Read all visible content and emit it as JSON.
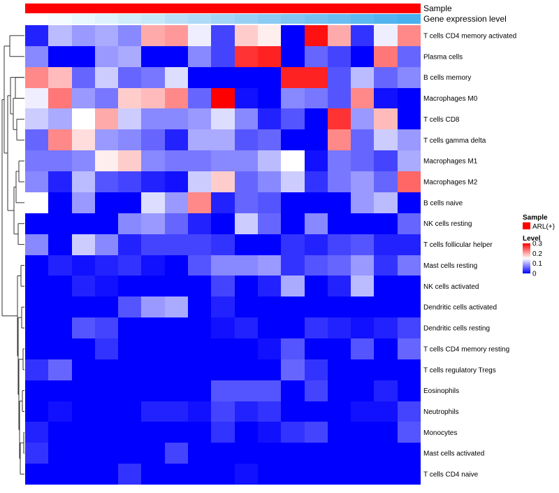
{
  "chart_data": {
    "type": "heatmap",
    "title": "",
    "row_names": [
      "T cells CD4 memory activated",
      "Plasma cells",
      "B cells memory",
      "Macrophages M0",
      "T cells CD8",
      "T cells gamma delta",
      "Macrophages M1",
      "Macrophages M2",
      "B cells naive",
      "NK cells resting",
      "T cells follicular helper",
      "Mast cells resting",
      "NK cells activated",
      "Dendritic cells activated",
      "Dendritic cells resting",
      "T cells CD4 memory resting",
      "T cells regulatory  Tregs",
      "Eosinophils",
      "Neutrophils",
      "Monocytes",
      "Mast cells activated",
      "T cells CD4 naive"
    ],
    "values": [
      [
        0.02,
        0.11,
        0.09,
        0.1,
        0.08,
        0.2,
        0.21,
        0.14,
        0.04,
        0.18,
        0.16,
        0.0,
        0.29,
        0.2,
        0.03,
        0.14,
        0.22
      ],
      [
        0.08,
        0.0,
        0.0,
        0.09,
        0.1,
        0.0,
        0.0,
        0.08,
        0.04,
        0.27,
        0.28,
        0.0,
        0.06,
        0.04,
        0.0,
        0.23,
        0.06
      ],
      [
        0.22,
        0.19,
        0.06,
        0.12,
        0.06,
        0.07,
        0.13,
        0.0,
        0.0,
        0.0,
        0.0,
        0.28,
        0.28,
        0.05,
        0.11,
        0.06,
        0.08
      ],
      [
        0.14,
        0.23,
        0.09,
        0.07,
        0.18,
        0.19,
        0.22,
        0.06,
        0.3,
        0.01,
        0.0,
        0.08,
        0.07,
        0.05,
        0.22,
        0.01,
        0.0
      ],
      [
        0.12,
        0.1,
        0.15,
        0.2,
        0.12,
        0.08,
        0.08,
        0.09,
        0.13,
        0.08,
        0.02,
        0.05,
        0.0,
        0.27,
        0.09,
        0.19,
        0.0
      ],
      [
        0.06,
        0.22,
        0.17,
        0.09,
        0.08,
        0.06,
        0.02,
        0.1,
        0.1,
        0.05,
        0.06,
        0.0,
        0.0,
        0.22,
        0.06,
        0.12,
        0.09
      ],
      [
        0.07,
        0.07,
        0.08,
        0.16,
        0.18,
        0.08,
        0.07,
        0.07,
        0.08,
        0.08,
        0.11,
        0.15,
        0.01,
        0.07,
        0.06,
        0.04,
        0.1
      ],
      [
        0.08,
        0.02,
        0.11,
        0.05,
        0.04,
        0.02,
        0.01,
        0.12,
        0.18,
        0.06,
        0.08,
        0.12,
        0.03,
        0.07,
        0.09,
        0.06,
        0.24
      ],
      [
        0.15,
        0.0,
        0.09,
        0.0,
        0.0,
        0.13,
        0.09,
        0.22,
        0.02,
        0.06,
        0.05,
        0.0,
        0.0,
        0.0,
        0.09,
        0.11,
        0.0
      ],
      [
        0.0,
        0.0,
        0.0,
        0.0,
        0.08,
        0.09,
        0.06,
        0.02,
        0.0,
        0.12,
        0.06,
        0.0,
        0.08,
        0.0,
        0.0,
        0.0,
        0.06
      ],
      [
        0.08,
        0.0,
        0.12,
        0.08,
        0.02,
        0.04,
        0.04,
        0.04,
        0.03,
        0.0,
        0.0,
        0.03,
        0.02,
        0.04,
        0.05,
        0.02,
        0.02
      ],
      [
        0.0,
        0.02,
        0.01,
        0.02,
        0.03,
        0.01,
        0.0,
        0.05,
        0.08,
        0.08,
        0.09,
        0.03,
        0.05,
        0.06,
        0.09,
        0.03,
        0.07
      ],
      [
        0.0,
        0.0,
        0.02,
        0.01,
        0.0,
        0.0,
        0.0,
        0.0,
        0.04,
        0.0,
        0.02,
        0.1,
        0.0,
        0.02,
        0.11,
        0.0,
        0.0
      ],
      [
        0.0,
        0.0,
        0.0,
        0.0,
        0.05,
        0.09,
        0.1,
        0.0,
        0.02,
        0.0,
        0.0,
        0.0,
        0.0,
        0.0,
        0.0,
        0.0,
        0.0
      ],
      [
        0.0,
        0.0,
        0.05,
        0.04,
        0.0,
        0.0,
        0.0,
        0.0,
        0.01,
        0.02,
        0.0,
        0.0,
        0.03,
        0.02,
        0.01,
        0.02,
        0.04
      ],
      [
        0.0,
        0.0,
        0.0,
        0.03,
        0.0,
        0.0,
        0.0,
        0.0,
        0.0,
        0.0,
        0.01,
        0.05,
        0.0,
        0.0,
        0.05,
        0.0,
        0.06
      ],
      [
        0.03,
        0.06,
        0.0,
        0.0,
        0.0,
        0.0,
        0.0,
        0.0,
        0.0,
        0.0,
        0.0,
        0.06,
        0.03,
        0.0,
        0.0,
        0.0,
        0.0
      ],
      [
        0.0,
        0.0,
        0.0,
        0.0,
        0.0,
        0.0,
        0.0,
        0.0,
        0.05,
        0.05,
        0.05,
        0.0,
        0.04,
        0.0,
        0.0,
        0.02,
        0.0
      ],
      [
        0.0,
        0.01,
        0.0,
        0.0,
        0.0,
        0.02,
        0.02,
        0.01,
        0.04,
        0.02,
        0.03,
        0.0,
        0.0,
        0.0,
        0.01,
        0.01,
        0.04
      ],
      [
        0.02,
        0.0,
        0.0,
        0.0,
        0.0,
        0.0,
        0.0,
        0.0,
        0.03,
        0.0,
        0.01,
        0.03,
        0.04,
        0.0,
        0.0,
        0.0,
        0.05
      ],
      [
        0.03,
        0.0,
        0.0,
        0.0,
        0.0,
        0.0,
        0.04,
        0.0,
        0.0,
        0.0,
        0.0,
        0.0,
        0.0,
        0.0,
        0.0,
        0.0,
        0.0
      ],
      [
        0.0,
        0.0,
        0.0,
        0.0,
        0.03,
        0.0,
        0.0,
        0.0,
        0.0,
        0.01,
        0.0,
        0.0,
        0.0,
        0.0,
        0.0,
        0.0,
        0.0
      ]
    ],
    "color_scale": {
      "min": 0,
      "mid": 0.15,
      "max": 0.3,
      "colors": [
        "#0000ff",
        "#ffffff",
        "#ff0000"
      ]
    },
    "annotation_tracks": [
      {
        "label": "Sample",
        "colors": [
          "#ff0000",
          "#ff0000",
          "#ff0000",
          "#ff0000",
          "#ff0000",
          "#ff0000",
          "#ff0000",
          "#ff0000",
          "#ff0000",
          "#ff0000",
          "#ff0000",
          "#ff0000",
          "#ff0000",
          "#ff0000",
          "#ff0000",
          "#ff0000",
          "#ff0000"
        ]
      },
      {
        "label": "Gene expression level",
        "colors": [
          "#ffffff",
          "#f4fbfe",
          "#e8f6fd",
          "#ddf2fc",
          "#d1edfb",
          "#c6e9fa",
          "#badff9",
          "#afdaf8",
          "#a3d5f6",
          "#98d0f5",
          "#8ccbf4",
          "#81c6f3",
          "#75c2f2",
          "#6abdf1",
          "#5eb8f0",
          "#53b3ee",
          "#48b0ee"
        ]
      }
    ],
    "legend": [
      {
        "title": "Sample",
        "type": "categorical",
        "items": [
          {
            "label": "ARL(+)",
            "color": "#ff0000"
          }
        ]
      },
      {
        "title": "Level",
        "type": "continuous",
        "ticks": [
          "0.3",
          "0.2",
          "0.1",
          "0"
        ]
      }
    ],
    "legend_placement": "right",
    "row_dendrogram": "left"
  }
}
